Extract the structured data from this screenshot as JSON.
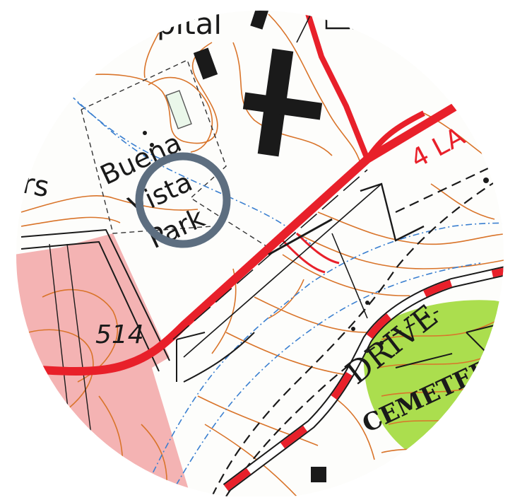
{
  "map": {
    "type": "topographic-map-excerpt",
    "labels": {
      "hospital": "spital",
      "park_line1": "Buena",
      "park_line2": "Vista",
      "park_line3": "Park",
      "left_edge": "rs",
      "route_number": "514",
      "lanes": "4 LA",
      "drive": "DRIVE",
      "cemetery": "CEMETERY"
    },
    "marker": {
      "name": "location-ring",
      "color": "#5d6e80"
    },
    "colors": {
      "highway": "#e8202a",
      "contour": "#d9742a",
      "water": "#3a7fd0",
      "urban_tint": "#f3b2b2",
      "woodland": "#a7dd44",
      "building": "#1a1a1a"
    }
  }
}
